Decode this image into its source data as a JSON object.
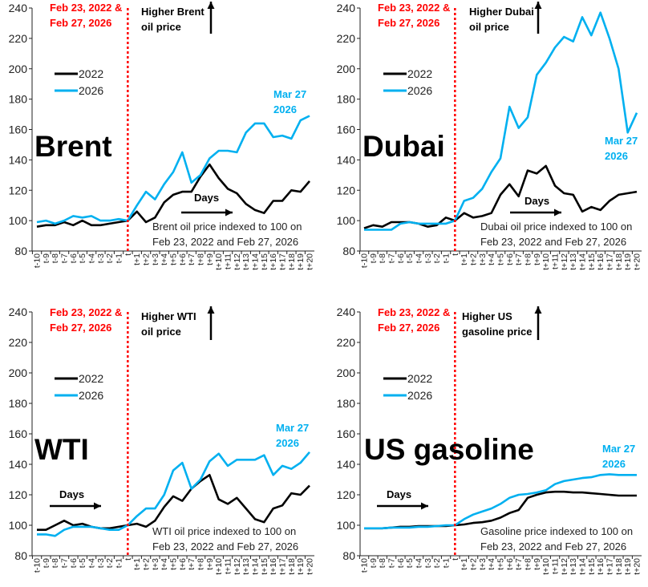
{
  "colors": {
    "s2022": "#000000",
    "s2026": "#00b0f0",
    "event_line": "#ff0000"
  },
  "chart_data": [
    {
      "type": "line",
      "title": "Brent",
      "categories": [
        "t-10",
        "t-9",
        "t-8",
        "t-7",
        "t-6",
        "t-5",
        "t-4",
        "t-3",
        "t-2",
        "t-1",
        "t",
        "t+1",
        "t+2",
        "t+3",
        "t+4",
        "t+5",
        "t+6",
        "t+7",
        "t+8",
        "t+9",
        "t+10",
        "t+11",
        "t+12",
        "t+13",
        "t+14",
        "t+15",
        "t+16",
        "t+17",
        "t+18",
        "t+19",
        "t+20"
      ],
      "yticks": [
        80,
        100,
        120,
        140,
        160,
        180,
        200,
        220,
        240
      ],
      "ylim": [
        80,
        240
      ],
      "event_label": [
        "Feb 23, 2022 &",
        "Feb 27, 2026"
      ],
      "higher_label": [
        "Higher Brent",
        "oil price"
      ],
      "end_label": [
        "Mar 27",
        "2026"
      ],
      "days_label": "Days",
      "note": [
        "Brent oil price indexed to 100 on",
        "Feb 23, 2022 and Feb 27, 2026"
      ],
      "series": [
        {
          "name": "2022",
          "values": [
            96,
            97,
            97,
            99,
            97,
            100,
            97,
            97,
            98,
            99,
            100,
            106,
            99,
            102,
            112,
            117,
            119,
            119,
            129,
            137,
            128,
            121,
            118,
            111,
            107,
            105,
            113,
            113,
            120,
            119,
            126
          ]
        },
        {
          "name": "2026",
          "values": [
            99,
            100,
            98,
            100,
            103,
            102,
            103,
            100,
            100,
            101,
            100,
            110,
            119,
            114,
            124,
            132,
            145,
            125,
            130,
            141,
            146,
            146,
            145,
            158,
            164,
            164,
            155,
            156,
            154,
            166,
            169
          ]
        }
      ]
    },
    {
      "type": "line",
      "title": "Dubai",
      "categories": [
        "t-10",
        "t-9",
        "t-8",
        "t-7",
        "t-6",
        "t-5",
        "t-4",
        "t-3",
        "t-2",
        "t-1",
        "t",
        "t+1",
        "t+2",
        "t+3",
        "t+4",
        "t+5",
        "t+6",
        "t+7",
        "t+8",
        "t+9",
        "t+10",
        "t+11",
        "t+12",
        "t+13",
        "t+14",
        "t+15",
        "t+16",
        "t+17",
        "t+18",
        "t+19",
        "t+20"
      ],
      "yticks": [
        80,
        100,
        120,
        140,
        160,
        180,
        200,
        220,
        240
      ],
      "ylim": [
        80,
        240
      ],
      "event_label": [
        "Feb 23, 2022 &",
        "Feb 27, 2026"
      ],
      "higher_label": [
        "Higher Dubai",
        "oil price"
      ],
      "end_label": [
        "Mar 27",
        "2026"
      ],
      "days_label": "Days",
      "note": [
        "Dubai oil price indexed to 100 on",
        "Feb 23, 2022 and Feb 27, 2026"
      ],
      "series": [
        {
          "name": "2022",
          "values": [
            95,
            97,
            96,
            99,
            99,
            99,
            98,
            96,
            97,
            102,
            100,
            105,
            102,
            103,
            105,
            117,
            124,
            116,
            133,
            131,
            136,
            123,
            118,
            117,
            106,
            109,
            107,
            113,
            117,
            118,
            119
          ]
        },
        {
          "name": "2026",
          "values": [
            94,
            94,
            94,
            94,
            98,
            99,
            98,
            98,
            98,
            98,
            100,
            113,
            115,
            121,
            132,
            141,
            175,
            161,
            168,
            196,
            204,
            214,
            221,
            218,
            234,
            222,
            237,
            220,
            200,
            158,
            171
          ]
        }
      ]
    },
    {
      "type": "line",
      "title": "WTI",
      "categories": [
        "t-10",
        "t-9",
        "t-8",
        "t-7",
        "t-6",
        "t-5",
        "t-4",
        "t-3",
        "t-2",
        "t-1",
        "t",
        "t+1",
        "t+2",
        "t+3",
        "t+4",
        "t+5",
        "t+6",
        "t+7",
        "t+8",
        "t+9",
        "t+10",
        "t+11",
        "t+12",
        "t+13",
        "t+14",
        "t+15",
        "t+16",
        "t+17",
        "t+18",
        "t+19",
        "t+20"
      ],
      "yticks": [
        80,
        100,
        120,
        140,
        160,
        180,
        200,
        220,
        240
      ],
      "ylim": [
        80,
        240
      ],
      "event_label": [
        "Feb 23, 2022 &",
        "Feb 27, 2026"
      ],
      "higher_label": [
        "Higher WTI",
        "oil price"
      ],
      "end_label": [
        "Mar 27",
        "2026"
      ],
      "days_label": "Days",
      "note": [
        "WTI oil price indexed to 100 on",
        "Feb 23, 2022 and Feb 27, 2026"
      ],
      "series": [
        {
          "name": "2022",
          "values": [
            97,
            97,
            100,
            103,
            100,
            101,
            99,
            98,
            98,
            99,
            100,
            101,
            99,
            103,
            112,
            119,
            116,
            124,
            129,
            133,
            117,
            114,
            118,
            111,
            104,
            102,
            111,
            113,
            121,
            120,
            126
          ]
        },
        {
          "name": "2026",
          "values": [
            94,
            94,
            93,
            97,
            99,
            99,
            99,
            98,
            97,
            97,
            100,
            106,
            111,
            111,
            120,
            136,
            141,
            124,
            130,
            142,
            147,
            139,
            143,
            143,
            143,
            146,
            133,
            139,
            137,
            141,
            148
          ]
        }
      ]
    },
    {
      "type": "line",
      "title": "US gasoline",
      "categories": [
        "t-10",
        "t-9",
        "t-8",
        "t-7",
        "t-6",
        "t-5",
        "t-4",
        "t-3",
        "t-2",
        "t-1",
        "t",
        "t+1",
        "t+2",
        "t+3",
        "t+4",
        "t+5",
        "t+6",
        "t+7",
        "t+8",
        "t+9",
        "t+10",
        "t+11",
        "t+12",
        "t+13",
        "t+14",
        "t+15",
        "t+16",
        "t+17",
        "t+18",
        "t+19",
        "t+20"
      ],
      "yticks": [
        80,
        100,
        120,
        140,
        160,
        180,
        200,
        220,
        240
      ],
      "ylim": [
        80,
        240
      ],
      "event_label": [
        "Feb 23, 2022 &",
        "Feb 27, 2026"
      ],
      "higher_label": [
        "Higher US",
        "gasoline price"
      ],
      "end_label": [
        "Mar 27",
        "2026"
      ],
      "days_label": "Days",
      "note": [
        "Gasoline price indexed to 100 on",
        "Feb 23, 2022 and Feb 27, 2026"
      ],
      "series": [
        {
          "name": "2022",
          "values": [
            98,
            98,
            98,
            98.5,
            99,
            99,
            99.5,
            99.5,
            99.5,
            99.5,
            100,
            100.5,
            101.5,
            102,
            103,
            105,
            108,
            110,
            118,
            120,
            121.5,
            122,
            122,
            121.5,
            121.5,
            121,
            120.5,
            120,
            119.5,
            119.5,
            119.5
          ]
        },
        {
          "name": "2026",
          "values": [
            98,
            98,
            98,
            98.5,
            98.5,
            98.5,
            99,
            99,
            99.5,
            100,
            100,
            104,
            107,
            109,
            111,
            114,
            118,
            120,
            120.5,
            121.5,
            123,
            127,
            129,
            130,
            131,
            131.5,
            133,
            133.5,
            133,
            133,
            133
          ]
        }
      ]
    }
  ]
}
